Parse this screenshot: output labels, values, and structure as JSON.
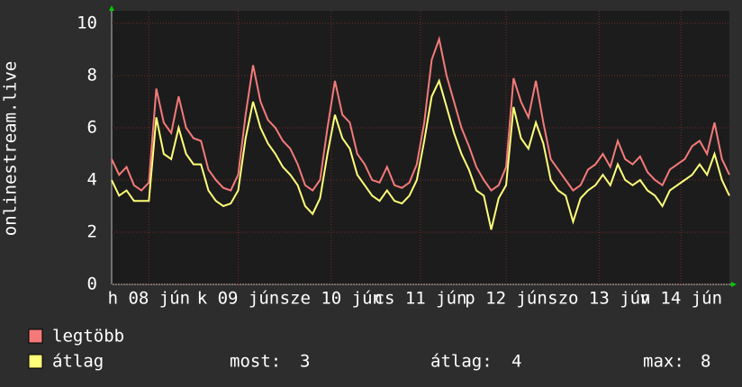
{
  "chart_data": {
    "type": "line",
    "ylabel": "onlinestream.live",
    "x": [
      0,
      1,
      2,
      3,
      4,
      5,
      6,
      7,
      8,
      9,
      10,
      11,
      12,
      13,
      14,
      15,
      16,
      17,
      18,
      19,
      20,
      21,
      22,
      23,
      24,
      25,
      26,
      27,
      28,
      29,
      30,
      31,
      32,
      33,
      34,
      35,
      36,
      37,
      38,
      39,
      40,
      41,
      42,
      43,
      44,
      45,
      46,
      47,
      48,
      49,
      50,
      51,
      52,
      53,
      54,
      55,
      56,
      57,
      58,
      59,
      60,
      61,
      62,
      63,
      64,
      65,
      66,
      67,
      68,
      69,
      70,
      71,
      72,
      73,
      74,
      75,
      76,
      77,
      78,
      79,
      80,
      81,
      82,
      83
    ],
    "xlim": [
      0,
      83
    ],
    "xticks": [
      {
        "value": 5,
        "label": "h 08 jún"
      },
      {
        "value": 17,
        "label": "k 09 jún"
      },
      {
        "value": 29.5,
        "label": "sze 10 jún"
      },
      {
        "value": 41.5,
        "label": "cs 11 jún"
      },
      {
        "value": 53,
        "label": "p 12 jún"
      },
      {
        "value": 65.5,
        "label": "szo 13 jún"
      },
      {
        "value": 76.5,
        "label": "v 14 jún"
      }
    ],
    "ylim": [
      0,
      10
    ],
    "yticks": [
      0,
      2,
      4,
      6,
      8,
      10
    ],
    "grid": true,
    "series": [
      {
        "name": "legtöbb",
        "color": "#f47a7a",
        "values": [
          4.8,
          4.2,
          4.5,
          3.8,
          3.6,
          3.9,
          7.5,
          6.2,
          5.8,
          7.2,
          6.0,
          5.6,
          5.5,
          4.4,
          4.0,
          3.7,
          3.6,
          4.2,
          6.5,
          8.4,
          7.0,
          6.3,
          6.0,
          5.5,
          5.2,
          4.6,
          3.8,
          3.6,
          4.0,
          6.0,
          7.8,
          6.5,
          6.2,
          5.0,
          4.6,
          4.0,
          3.9,
          4.5,
          3.8,
          3.7,
          3.9,
          4.6,
          6.2,
          8.6,
          9.4,
          8.0,
          7.0,
          6.0,
          5.3,
          4.5,
          4.0,
          3.6,
          3.8,
          4.5,
          7.9,
          7.0,
          6.4,
          7.8,
          6.2,
          4.8,
          4.4,
          4.0,
          3.6,
          3.8,
          4.4,
          4.6,
          5.0,
          4.5,
          5.5,
          4.8,
          4.6,
          4.9,
          4.3,
          4.0,
          3.8,
          4.4,
          4.6,
          4.8,
          5.3,
          5.5,
          5.0,
          6.2,
          4.8,
          4.2
        ]
      },
      {
        "name": "átlag",
        "color": "#ffff7a",
        "values": [
          4.0,
          3.4,
          3.6,
          3.2,
          3.2,
          3.2,
          6.4,
          5.0,
          4.8,
          6.0,
          5.0,
          4.6,
          4.6,
          3.6,
          3.2,
          3.0,
          3.1,
          3.6,
          5.6,
          7.0,
          6.0,
          5.4,
          5.0,
          4.5,
          4.2,
          3.8,
          3.0,
          2.7,
          3.3,
          5.0,
          6.5,
          5.6,
          5.2,
          4.2,
          3.8,
          3.4,
          3.2,
          3.6,
          3.2,
          3.1,
          3.4,
          4.0,
          5.5,
          7.2,
          7.8,
          6.8,
          5.8,
          5.0,
          4.4,
          3.6,
          3.4,
          2.1,
          3.3,
          3.8,
          6.8,
          5.6,
          5.2,
          6.2,
          5.4,
          4.0,
          3.6,
          3.4,
          2.4,
          3.3,
          3.6,
          3.8,
          4.2,
          3.8,
          4.6,
          4.0,
          3.8,
          4.0,
          3.6,
          3.4,
          3.0,
          3.6,
          3.8,
          4.0,
          4.2,
          4.6,
          4.2,
          5.0,
          4.0,
          3.4
        ]
      }
    ],
    "stats": [
      {
        "label": "most:",
        "value": 3
      },
      {
        "label": "átlag:",
        "value": 4
      },
      {
        "label": "max:",
        "value": 8
      }
    ]
  }
}
